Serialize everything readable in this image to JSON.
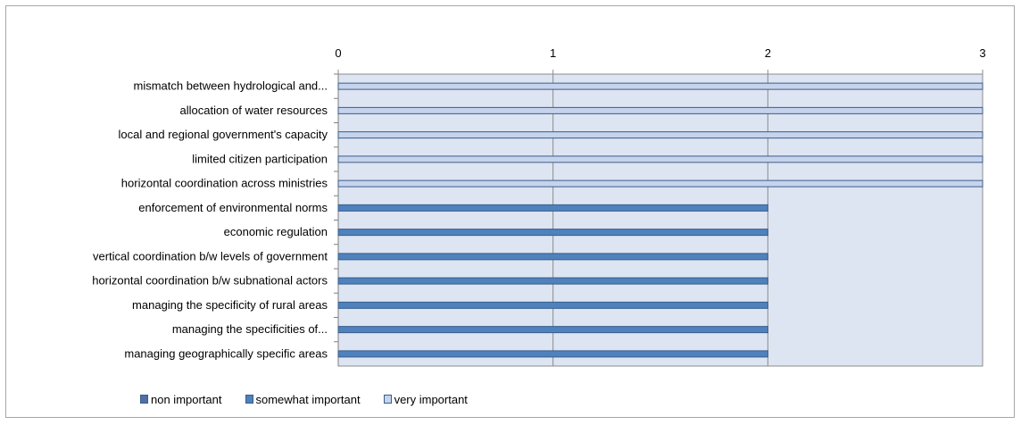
{
  "chart_data": {
    "type": "bar",
    "orientation": "horizontal",
    "stacked": true,
    "categories": [
      "mismatch between hydrological and...",
      "allocation of water resources",
      "local and regional government's capacity",
      "limited citizen participation",
      "horizontal coordination across ministries",
      "enforcement of environmental norms",
      "economic regulation",
      "vertical coordination b/w levels of government",
      "horizontal coordination b/w subnational actors",
      "managing the specificity of rural areas",
      "managing the specificities of...",
      "managing geographically specific areas"
    ],
    "series": [
      {
        "name": "non important",
        "color": "#4f6fa6",
        "values": [
          0,
          0,
          0,
          0,
          0,
          0,
          0,
          0,
          0,
          0,
          0,
          0
        ]
      },
      {
        "name": "somewhat important",
        "color": "#4f81bd",
        "values": [
          0,
          0,
          0,
          0,
          0,
          2,
          2,
          2,
          2,
          2,
          2,
          2
        ]
      },
      {
        "name": "very important",
        "color": "#c6d3ec",
        "values": [
          3,
          3,
          3,
          3,
          3,
          0,
          0,
          0,
          0,
          0,
          0,
          0
        ]
      }
    ],
    "xlim": [
      0,
      3
    ],
    "xticks": [
      "0",
      "1",
      "2",
      "3"
    ],
    "axis_position": "top",
    "gridlines": true,
    "legend_position": "bottom-left"
  },
  "colors": {
    "plot_background": "#dde4f2",
    "gridline": "#8c8c8c",
    "bar_outline": "#385d8a"
  }
}
